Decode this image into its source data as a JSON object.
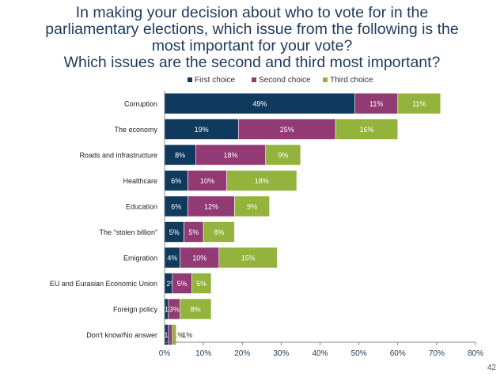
{
  "title_lines": [
    "In making your decision about who to vote for in the",
    "parliamentary elections, which issue from the following is the",
    "most important for your vote?",
    "Which issues are the second and third most important?"
  ],
  "page_number": "42",
  "colors": {
    "first": "#0f3a5e",
    "second": "#923a74",
    "third": "#93b33c"
  },
  "chart_data": {
    "type": "bar",
    "orientation": "horizontal",
    "stacked": true,
    "categories": [
      "Corruption",
      "The economy",
      "Roads and infrastructure",
      "Healthcare",
      "Education",
      "The “stolen billion”",
      "Emigration",
      "EU and Eurasian Economic Union",
      "Foreign policy",
      "Don't know/No answer"
    ],
    "series": [
      {
        "name": "First choice",
        "values": [
          49,
          19,
          8,
          6,
          6,
          5,
          4,
          2,
          1,
          1
        ],
        "labels": [
          "49%",
          "19%",
          "8%",
          "6%",
          "6%",
          "5%",
          "4%",
          "2%",
          "1%",
          "1%"
        ]
      },
      {
        "name": "Second choice",
        "values": [
          11,
          25,
          18,
          10,
          12,
          5,
          10,
          5,
          3,
          1
        ],
        "labels": [
          "11%",
          "25%",
          "18%",
          "10%",
          "12%",
          "5%",
          "10%",
          "5%",
          "3%",
          "1%"
        ]
      },
      {
        "name": "Third choice",
        "values": [
          11,
          16,
          9,
          18,
          9,
          8,
          15,
          5,
          8,
          1
        ],
        "labels": [
          "11%",
          "16%",
          "9%",
          "18%",
          "9%",
          "8%",
          "15%",
          "5%",
          "8%",
          "1%"
        ]
      }
    ],
    "xlim": [
      0,
      80
    ],
    "x_ticks": [
      "0%",
      "10%",
      "20%",
      "30%",
      "40%",
      "50%",
      "60%",
      "70%",
      "80%"
    ],
    "legend_position": "top",
    "grid": false
  }
}
